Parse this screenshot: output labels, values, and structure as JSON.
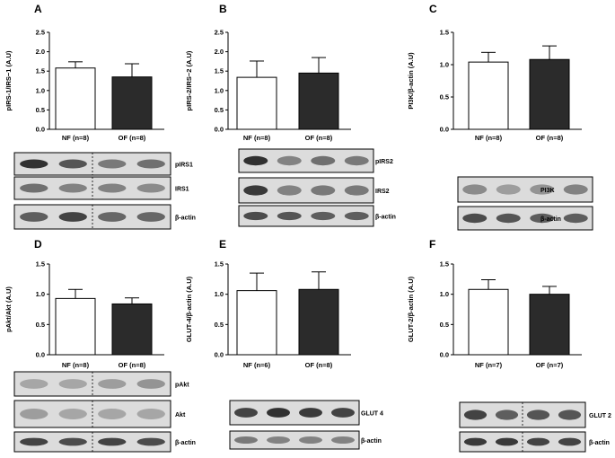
{
  "chart_data": [
    {
      "panel": "A",
      "type": "bar",
      "ylabel": "pIRS-1/IRS−1 (A.U)",
      "categories": [
        "NF (n=8)",
        "OF (n=8)"
      ],
      "values": [
        1.58,
        1.35
      ],
      "errors": [
        0.16,
        0.34
      ],
      "ylim": [
        0,
        2.5
      ],
      "yticks": [
        "0.0",
        "0.5",
        "1.0",
        "1.5",
        "2.0",
        "2.5"
      ],
      "bar_colors": [
        "#ffffff",
        "#2b2b2b"
      ],
      "blots": [
        {
          "label": "pIRS1",
          "bands": [
            0.95,
            0.75,
            0.55,
            0.6
          ],
          "divider": true
        },
        {
          "label": "IRS1",
          "bands": [
            0.6,
            0.5,
            0.5,
            0.45
          ],
          "divider": true
        },
        {
          "label": "β-actin",
          "bands": [
            0.7,
            0.85,
            0.65,
            0.65
          ],
          "divider": true
        }
      ]
    },
    {
      "panel": "B",
      "type": "bar",
      "ylabel": "pIRS-2/IRS−2 (A.U)",
      "categories": [
        "NF (n=8)",
        "OF (n=8)"
      ],
      "values": [
        1.34,
        1.45
      ],
      "errors": [
        0.42,
        0.4
      ],
      "ylim": [
        0,
        2.5
      ],
      "yticks": [
        "0.0",
        "0.5",
        "1.0",
        "1.5",
        "2.0",
        "2.5"
      ],
      "bar_colors": [
        "#ffffff",
        "#2b2b2b"
      ],
      "blots": [
        {
          "label": "pIRS2",
          "bands": [
            0.95,
            0.5,
            0.6,
            0.55
          ],
          "divider": false
        },
        {
          "label": "IRS2",
          "bands": [
            0.9,
            0.5,
            0.55,
            0.55
          ],
          "divider": false
        },
        {
          "label": "β-actin",
          "bands": [
            0.8,
            0.75,
            0.7,
            0.7
          ],
          "divider": false
        }
      ]
    },
    {
      "panel": "C",
      "type": "bar",
      "ylabel": "PI3K/β-actin (A.U)",
      "categories": [
        "NF (n=8)",
        "OF (n=8)"
      ],
      "values": [
        1.04,
        1.08
      ],
      "errors": [
        0.15,
        0.21
      ],
      "ylim": [
        0,
        1.5
      ],
      "yticks": [
        "0.0",
        "0.5",
        "1.0",
        "1.5"
      ],
      "bar_colors": [
        "#ffffff",
        "#2b2b2b"
      ],
      "blots": [
        {
          "label": "PI3K",
          "bands": [
            0.45,
            0.35,
            0.4,
            0.5
          ],
          "divider": false
        },
        {
          "label": "β-actin",
          "bands": [
            0.8,
            0.75,
            0.7,
            0.7
          ],
          "divider": false
        }
      ]
    },
    {
      "panel": "D",
      "type": "bar",
      "ylabel": "pAkt/Akt (A.U)",
      "categories": [
        "NF (n=8)",
        "OF (n=8)"
      ],
      "values": [
        0.93,
        0.84
      ],
      "errors": [
        0.15,
        0.1
      ],
      "ylim": [
        0,
        1.5
      ],
      "yticks": [
        "0.0",
        "0.5",
        "1.0",
        "1.5"
      ],
      "bar_colors": [
        "#ffffff",
        "#2b2b2b"
      ],
      "blots": [
        {
          "label": "pAkt",
          "bands": [
            0.3,
            0.3,
            0.35,
            0.4
          ],
          "divider": true
        },
        {
          "label": "Akt",
          "bands": [
            0.35,
            0.3,
            0.3,
            0.3
          ],
          "divider": true
        },
        {
          "label": "β-actin",
          "bands": [
            0.85,
            0.8,
            0.85,
            0.8
          ],
          "divider": true
        }
      ]
    },
    {
      "panel": "E",
      "type": "bar",
      "ylabel": "GLUT-4/β-actin (A.U)",
      "categories": [
        "NF (n=6)",
        "OF (n=8)"
      ],
      "values": [
        1.06,
        1.08
      ],
      "errors": [
        0.29,
        0.29
      ],
      "ylim": [
        0,
        1.5
      ],
      "yticks": [
        "0.0",
        "0.5",
        "1.0",
        "1.5"
      ],
      "bar_colors": [
        "#ffffff",
        "#2b2b2b"
      ],
      "blots": [
        {
          "label": "GLUT 4",
          "bands": [
            0.85,
            0.95,
            0.9,
            0.85
          ],
          "divider": false
        },
        {
          "label": "β-actin",
          "bands": [
            0.55,
            0.5,
            0.5,
            0.5
          ],
          "divider": false
        }
      ]
    },
    {
      "panel": "F",
      "type": "bar",
      "ylabel": "GLUT-2/β-actin (A.U)",
      "categories": [
        "NF (n=7)",
        "OF (n=7)"
      ],
      "values": [
        1.08,
        1.0
      ],
      "errors": [
        0.16,
        0.13
      ],
      "ylim": [
        0,
        1.5
      ],
      "yticks": [
        "0.0",
        "0.5",
        "1.0",
        "1.5"
      ],
      "bar_colors": [
        "#ffffff",
        "#2b2b2b"
      ],
      "blots": [
        {
          "label": "GLUT 2",
          "bands": [
            0.85,
            0.7,
            0.75,
            0.75
          ],
          "divider": true
        },
        {
          "label": "β-actin",
          "bands": [
            0.9,
            0.9,
            0.85,
            0.85
          ],
          "divider": true
        }
      ]
    }
  ]
}
